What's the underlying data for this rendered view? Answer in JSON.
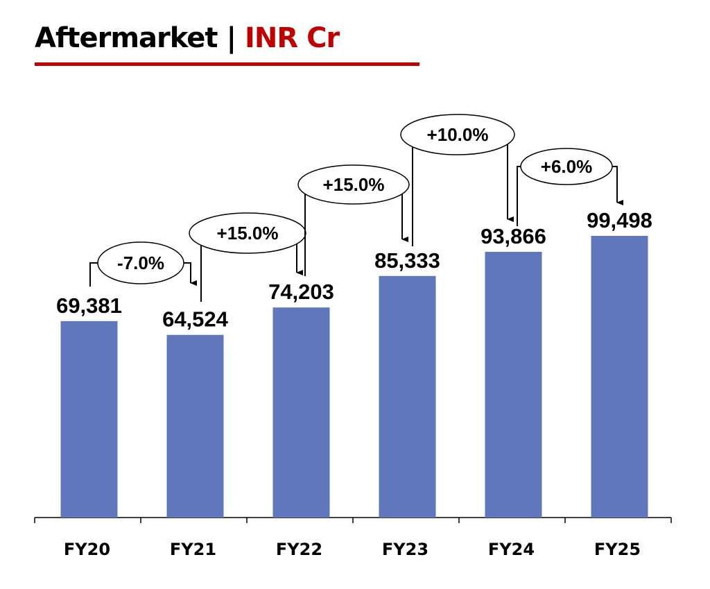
{
  "chart_data": {
    "type": "bar",
    "title": "Aftermarket",
    "title_unit": "INR Cr",
    "categories": [
      "FY20",
      "FY21",
      "FY22",
      "FY23",
      "FY24",
      "FY25"
    ],
    "values": [
      69381,
      64524,
      74203,
      85333,
      93866,
      99498
    ],
    "data_labels": [
      "69,381",
      "64,524",
      "74,203",
      "85,333",
      "93,866",
      "99,498"
    ],
    "growth_labels": [
      "-7.0%",
      "+15.0%",
      "+15.0%",
      "+10.0%",
      "+6.0%"
    ],
    "xlabel": "",
    "ylabel": "",
    "ylim": [
      0,
      100000
    ],
    "grid": false,
    "colors": {
      "bar": "#6078bb",
      "accent": "#c00000"
    }
  }
}
